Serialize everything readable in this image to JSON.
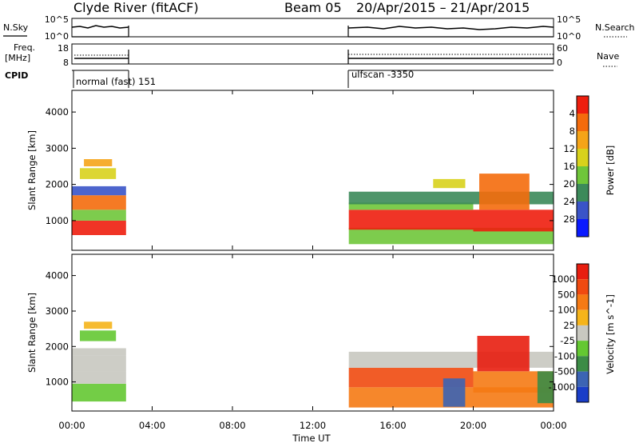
{
  "header": {
    "title": "Clyde River (fitACF)",
    "beam": "Beam 05",
    "date_range": "20/Apr/2015 – 21/Apr/2015"
  },
  "panels": {
    "noise": {
      "left_label": "N.Sky",
      "right_label": "N.Search",
      "left_ticks": [
        "10^5",
        "10^0"
      ],
      "right_ticks": [
        "10^5",
        "10^0"
      ]
    },
    "frequency": {
      "left_label": [
        "Freq.",
        "[MHz]"
      ],
      "right_label": "Nave",
      "left_ticks": [
        "18",
        "8"
      ],
      "right_ticks": [
        "60",
        "0"
      ]
    },
    "cpid": {
      "label": "CPID",
      "modes": [
        {
          "label": "normal (fast) 151"
        },
        {
          "label": "ulfscan -3350"
        }
      ]
    }
  },
  "axes": {
    "time": {
      "label": "Time UT",
      "range_hours": [
        0,
        24
      ],
      "ticks": [
        {
          "hour": 0,
          "label": "00:00"
        },
        {
          "hour": 4,
          "label": "04:00"
        },
        {
          "hour": 8,
          "label": "08:00"
        },
        {
          "hour": 12,
          "label": "12:00"
        },
        {
          "hour": 16,
          "label": "16:00"
        },
        {
          "hour": 20,
          "label": "20:00"
        },
        {
          "hour": 24,
          "label": "00:00"
        }
      ]
    }
  },
  "chart_data": [
    {
      "type": "heatmap",
      "panel": "power",
      "ylabel": "Slant Range [km]",
      "ylim": [
        180,
        4600
      ],
      "yticks": [
        1000,
        2000,
        3000,
        4000
      ],
      "colorbar_label": "Power [dB]",
      "colorbar_ticks": [
        "4",
        "8",
        "12",
        "16",
        "20",
        "24",
        "28"
      ],
      "colorbar_colors": [
        "#0a1aff",
        "#3a54c8",
        "#3c8a5a",
        "#6fc63a",
        "#d8d21c",
        "#f5a418",
        "#f46b0c",
        "#ee1e0e"
      ],
      "regions": [
        {
          "t": [
            0.0,
            2.7
          ],
          "range": [
            600,
            1000
          ],
          "level": 7
        },
        {
          "t": [
            0.0,
            2.7
          ],
          "range": [
            1000,
            1300
          ],
          "level": 3
        },
        {
          "t": [
            0.0,
            2.7
          ],
          "range": [
            1300,
            1700
          ],
          "level": 6
        },
        {
          "t": [
            0.0,
            2.7
          ],
          "range": [
            1700,
            1950
          ],
          "level": 1
        },
        {
          "t": [
            0.4,
            2.2
          ],
          "range": [
            2150,
            2450
          ],
          "level": 4
        },
        {
          "t": [
            0.6,
            2.0
          ],
          "range": [
            2500,
            2700
          ],
          "level": 5
        },
        {
          "t": [
            13.8,
            24.0
          ],
          "range": [
            350,
            800
          ],
          "level": 3
        },
        {
          "t": [
            13.8,
            20.0
          ],
          "range": [
            750,
            1300
          ],
          "level": 7
        },
        {
          "t": [
            13.8,
            20.0
          ],
          "range": [
            1300,
            1500
          ],
          "level": 3
        },
        {
          "t": [
            13.8,
            24.0
          ],
          "range": [
            1450,
            1800
          ],
          "level": 2
        },
        {
          "t": [
            18.0,
            19.6
          ],
          "range": [
            1900,
            2150
          ],
          "level": 4
        },
        {
          "t": [
            20.0,
            24.0
          ],
          "range": [
            700,
            1300
          ],
          "level": 7
        },
        {
          "t": [
            20.3,
            22.8
          ],
          "range": [
            1300,
            2300
          ],
          "level": 6
        }
      ]
    },
    {
      "type": "heatmap",
      "panel": "velocity",
      "ylabel": "Slant Range [km]",
      "ylim": [
        180,
        4600
      ],
      "yticks": [
        1000,
        2000,
        3000,
        4000
      ],
      "colorbar_label": "Velocity [m s^-1]",
      "colorbar_ticks": [
        "1000",
        "500",
        "100",
        "25",
        "-25",
        "-100",
        "-500",
        "-1000"
      ],
      "colorbar_colors": [
        "#1a3ec8",
        "#3c64b4",
        "#3c8c46",
        "#64c832",
        "#c8c8c0",
        "#f5b41a",
        "#f57a14",
        "#f04a10",
        "#e81e10"
      ],
      "regions": [
        {
          "t": [
            0.0,
            2.7
          ],
          "range": [
            450,
            950
          ],
          "level": 3
        },
        {
          "t": [
            0.0,
            2.7
          ],
          "range": [
            950,
            1300
          ],
          "level": 4
        },
        {
          "t": [
            0.0,
            2.7
          ],
          "range": [
            1300,
            1750
          ],
          "level": 4
        },
        {
          "t": [
            0.0,
            2.7
          ],
          "range": [
            1750,
            1950
          ],
          "level": 4
        },
        {
          "t": [
            0.4,
            2.2
          ],
          "range": [
            2150,
            2450
          ],
          "level": 3
        },
        {
          "t": [
            0.6,
            2.0
          ],
          "range": [
            2500,
            2700
          ],
          "level": 5
        },
        {
          "t": [
            13.8,
            24.0
          ],
          "range": [
            280,
            850
          ],
          "level": 6
        },
        {
          "t": [
            13.8,
            20.0
          ],
          "range": [
            850,
            1400
          ],
          "level": 7
        },
        {
          "t": [
            13.8,
            24.0
          ],
          "range": [
            1400,
            1850
          ],
          "level": 4
        },
        {
          "t": [
            18.5,
            19.6
          ],
          "range": [
            300,
            1100
          ],
          "level": 1
        },
        {
          "t": [
            20.0,
            24.0
          ],
          "range": [
            700,
            1300
          ],
          "level": 6
        },
        {
          "t": [
            20.2,
            22.8
          ],
          "range": [
            1300,
            2300
          ],
          "level": 8
        },
        {
          "t": [
            23.2,
            24.0
          ],
          "range": [
            400,
            1300
          ],
          "level": 2
        }
      ]
    }
  ]
}
